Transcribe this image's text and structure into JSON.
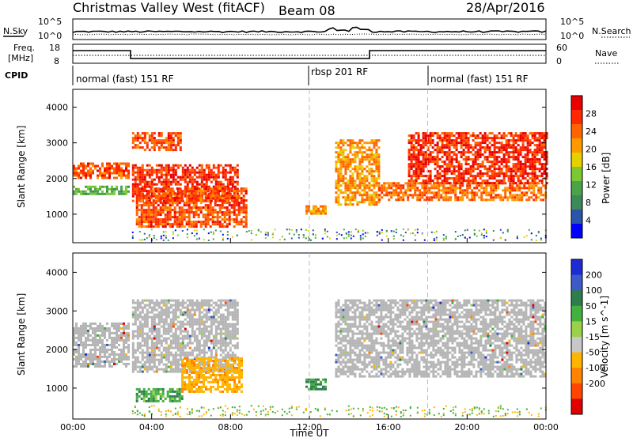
{
  "header": {
    "station": "Christmas Valley West (fitACF)",
    "beam": "Beam 08",
    "date": "28/Apr/2016"
  },
  "top_panels": {
    "nsky_label": "N.Sky",
    "nsearch_label": "N.Search",
    "noise_ticks_left": [
      "10^5",
      "10^0"
    ],
    "noise_ticks_right": [
      "10^5",
      "10^0"
    ],
    "freq_label": "Freq.",
    "freq_unit": "[MHz]",
    "freq_ticks": [
      "18",
      "8"
    ],
    "nave_label": "Nave",
    "nave_ticks": [
      "60",
      "0"
    ],
    "cpid_label": "CPID",
    "cpid_segments": [
      "normal (fast) 151 RF",
      "rbsp 201 RF",
      "normal (fast) 151 RF"
    ]
  },
  "colors": {
    "power_scale": [
      "#0000ff",
      "#2a55a8",
      "#3c8a5a",
      "#4aa24a",
      "#7cc832",
      "#e6d000",
      "#ff9900",
      "#ff6400",
      "#ff2800",
      "#e80000"
    ],
    "velocity_scale": [
      "#1e2ad2",
      "#3c5ac8",
      "#2f7d4f",
      "#44b040",
      "#9ad04a",
      "#c8c8c8",
      "#ffb400",
      "#ff8200",
      "#ff4600",
      "#e00000"
    ],
    "ground_scatter": "#b4b4b4"
  },
  "chart_data": [
    {
      "type": "heatmap",
      "panel": "power",
      "ylabel": "Slant Range [km]",
      "yticks": [
        "1000",
        "2000",
        "3000",
        "4000"
      ],
      "ylim": [
        200,
        4500
      ],
      "xlim": [
        0,
        24
      ],
      "colorbar_label": "Power [dB]",
      "colorbar_ticks": [
        "4",
        "8",
        "12",
        "16",
        "20",
        "24",
        "28"
      ],
      "regions": [
        {
          "t0": 0.0,
          "t1": 2.8,
          "r0": 2000,
          "r1": 2450,
          "level": 24
        },
        {
          "t0": 0.0,
          "t1": 2.8,
          "r0": 1550,
          "r1": 1800,
          "level": 10
        },
        {
          "t0": 3.0,
          "t1": 5.5,
          "r0": 2800,
          "r1": 3300,
          "level": 24
        },
        {
          "t0": 3.0,
          "t1": 8.3,
          "r0": 1400,
          "r1": 2400,
          "level": 26
        },
        {
          "t0": 3.2,
          "t1": 8.8,
          "r0": 650,
          "r1": 1750,
          "level": 24
        },
        {
          "t0": 11.8,
          "t1": 12.8,
          "r0": 1000,
          "r1": 1250,
          "level": 20
        },
        {
          "t0": 13.3,
          "t1": 15.5,
          "r0": 1300,
          "r1": 3100,
          "level": 20
        },
        {
          "t0": 15.5,
          "t1": 24.0,
          "r0": 1400,
          "r1": 1900,
          "level": 22
        },
        {
          "t0": 17.0,
          "t1": 24.0,
          "r0": 1900,
          "r1": 3300,
          "level": 26
        }
      ]
    },
    {
      "type": "heatmap",
      "panel": "velocity",
      "ylabel": "Slant Range [km]",
      "yticks": [
        "1000",
        "2000",
        "3000",
        "4000"
      ],
      "ylim": [
        200,
        4500
      ],
      "xlim": [
        0,
        24
      ],
      "xticks": [
        "00:00",
        "04:00",
        "08:00",
        "12:00",
        "16:00",
        "20:00",
        "00:00"
      ],
      "xlabel": "Time UT",
      "colorbar_label": "Velocity [m s^-1]",
      "colorbar_ticks": [
        "200",
        "100",
        "50",
        "15",
        "-15",
        "-50",
        "-100",
        "-200"
      ],
      "regions": [
        {
          "t0": 0.0,
          "t1": 2.8,
          "r0": 1550,
          "r1": 2700,
          "level": 0
        },
        {
          "t0": 3.0,
          "t1": 8.3,
          "r0": 1400,
          "r1": 3300,
          "level": 0
        },
        {
          "t0": 3.2,
          "t1": 5.5,
          "r0": 650,
          "r1": 1000,
          "level": 40
        },
        {
          "t0": 5.5,
          "t1": 8.6,
          "r0": 900,
          "r1": 1800,
          "level": -80
        },
        {
          "t0": 11.8,
          "t1": 12.8,
          "r0": 1000,
          "r1": 1250,
          "level": 60
        },
        {
          "t0": 13.3,
          "t1": 24.0,
          "r0": 1300,
          "r1": 3300,
          "level": 0
        }
      ]
    }
  ]
}
